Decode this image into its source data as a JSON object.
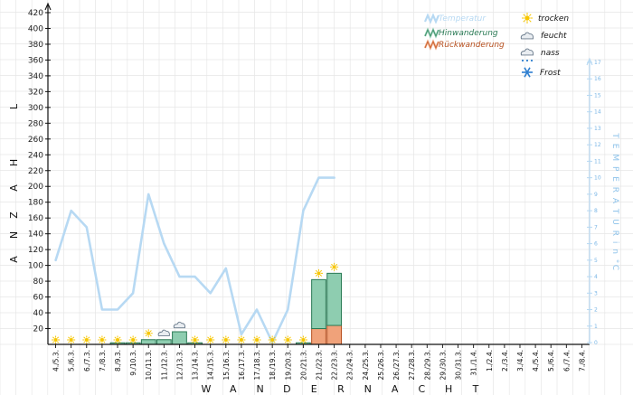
{
  "chart_data": {
    "type": "bar",
    "categories": [
      "4./5.3.",
      "5./6.3.",
      "6./7.3.",
      "7./8.3.",
      "8./9.3.",
      "9./10.3.",
      "10./11.3.",
      "11./12.3.",
      "12./13.3.",
      "13./14.3.",
      "14./15.3.",
      "15./16.3.",
      "16./17.3.",
      "17./18.3.",
      "18./19.3.",
      "19./20.3.",
      "20./21.3.",
      "21./22.3.",
      "22./23.3.",
      "23./24.3.",
      "24./25.3.",
      "25./26.3.",
      "26./27.3.",
      "27./28.3.",
      "28./29.3.",
      "29./30.3.",
      "30./31.3.",
      "31./1.4.",
      "1./2.4.",
      "2./3.4.",
      "3./4.4.",
      "4./5.4.",
      "5./6.4.",
      "6./7.4.",
      "7./8.4."
    ],
    "category_labels": [
      "4./5.3.",
      "5./6.3.",
      "6./7.3.",
      "7./8.3.",
      "8./9.3.",
      "9./10.3.",
      "10./11.3.",
      "11./12.3.",
      "12./13.3.",
      "13./14.3.",
      "14./15.3.",
      "15./16.3.",
      "16./17.3.",
      "17./18.3.",
      "18./19.3.",
      "19./20.3.",
      "20./21.3.",
      "21./22.3.",
      "22./23.3.",
      "23./24.3.",
      "24./25.3.",
      "25./26.3.",
      "26./27.3.",
      "27./28.3.",
      "28./29.3.",
      "29./30.3.",
      "30./31.3.",
      "31./1.4.",
      "1./2.4.",
      "2./3.4.",
      "3./4.4.",
      "4./5.4.",
      "5./6.4.",
      "6./7.4.",
      "7./8.4."
    ],
    "series": [
      {
        "name": "Hinwanderung",
        "values": [
          0,
          0,
          0,
          0,
          2,
          2,
          6,
          6,
          16,
          2,
          0,
          0,
          0,
          0,
          0,
          0,
          2,
          62,
          66,
          null,
          null,
          null,
          null,
          null,
          null,
          null,
          null,
          null,
          null,
          null,
          null,
          null,
          null,
          null,
          null
        ]
      },
      {
        "name": "Rückwanderung",
        "values": [
          0,
          0,
          0,
          0,
          0,
          0,
          0,
          0,
          0,
          0,
          0,
          0,
          0,
          0,
          0,
          0,
          0,
          20,
          24,
          null,
          null,
          null,
          null,
          null,
          null,
          null,
          null,
          null,
          null,
          null,
          null,
          null,
          null,
          null,
          null
        ]
      }
    ],
    "temperature": {
      "name": "Temperatur",
      "values": [
        5,
        8,
        7,
        2,
        2,
        3,
        9,
        6,
        4,
        4,
        3,
        4.5,
        0.5,
        2,
        0,
        2,
        8,
        10,
        10,
        null,
        null,
        null,
        null,
        null,
        null,
        null,
        null,
        null,
        null,
        null,
        null,
        null,
        null,
        null,
        null
      ]
    },
    "weather": [
      "trocken",
      "trocken",
      "trocken",
      "trocken",
      "trocken",
      "trocken",
      "trocken",
      "feucht",
      "feucht",
      "trocken",
      "trocken",
      "trocken",
      "trocken",
      "trocken",
      "trocken",
      "trocken",
      "trocken",
      "trocken",
      "trocken",
      null,
      null,
      null,
      null,
      null,
      null,
      null,
      null,
      null,
      null,
      null,
      null,
      null,
      null,
      null,
      null
    ],
    "ylabel": "A N Z A H L",
    "y2label": "T E M P E R A T U R   i n  °C",
    "xlabel": "W A N D E R N A C H T",
    "ylim": [
      0,
      420
    ],
    "yticks": [
      20,
      40,
      60,
      80,
      100,
      120,
      140,
      160,
      180,
      200,
      220,
      240,
      260,
      280,
      300,
      320,
      340,
      360,
      380,
      400,
      420
    ],
    "y2lim": [
      0,
      17
    ],
    "y2ticks": [
      0,
      1,
      2,
      3,
      4,
      5,
      6,
      7,
      8,
      9,
      10,
      11,
      12,
      13,
      14,
      15,
      16,
      17
    ],
    "grid": true,
    "legend": {
      "position": "top-right",
      "series_entries": [
        "Temperatur",
        "Hinwanderung",
        "Rückwanderung"
      ],
      "weather_entries": [
        "trocken",
        "feucht",
        "nass",
        "Frost"
      ]
    },
    "colors": {
      "hin_fill": "#8ecdb0",
      "hin_stroke": "#2a7a55",
      "rueck_fill": "#f0a27a",
      "rueck_stroke": "#b8501f",
      "temp": "#b7d9f3",
      "sun": "#f7c600",
      "cloud": "#6b7b8c",
      "frost": "#2e7fd0",
      "grid": "#e6e6e6"
    }
  }
}
